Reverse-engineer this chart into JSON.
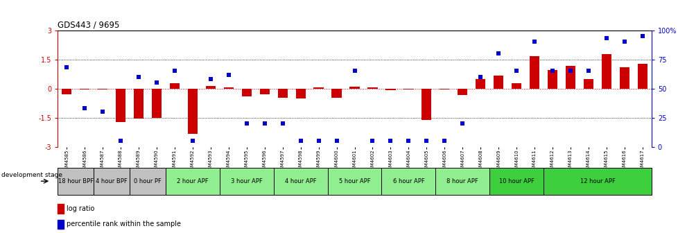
{
  "title": "GDS443 / 9695",
  "samples": [
    "GSM4585",
    "GSM4586",
    "GSM4587",
    "GSM4588",
    "GSM4589",
    "GSM4590",
    "GSM4591",
    "GSM4592",
    "GSM4593",
    "GSM4594",
    "GSM4595",
    "GSM4596",
    "GSM4597",
    "GSM4598",
    "GSM4599",
    "GSM4600",
    "GSM4601",
    "GSM4602",
    "GSM4603",
    "GSM4604",
    "GSM4605",
    "GSM4606",
    "GSM4607",
    "GSM4608",
    "GSM4609",
    "GSM4610",
    "GSM4611",
    "GSM4612",
    "GSM4613",
    "GSM4614",
    "GSM4615",
    "GSM4616",
    "GSM4617"
  ],
  "log_ratio": [
    -0.28,
    -0.05,
    -0.05,
    -1.72,
    -1.55,
    -1.5,
    0.28,
    -2.35,
    0.12,
    0.05,
    -0.42,
    -0.28,
    -0.48,
    -0.52,
    0.05,
    -0.48,
    0.08,
    0.05,
    -0.08,
    -0.05,
    -1.62,
    -0.05,
    -0.32,
    0.48,
    0.68,
    0.28,
    1.68,
    0.95,
    1.18,
    0.48,
    1.78,
    1.08,
    1.28
  ],
  "percentile": [
    68,
    33,
    30,
    5,
    60,
    55,
    65,
    5,
    58,
    62,
    20,
    20,
    20,
    5,
    5,
    5,
    65,
    5,
    5,
    5,
    5,
    5,
    20,
    60,
    80,
    65,
    90,
    65,
    65,
    65,
    93,
    90,
    95
  ],
  "stages": [
    {
      "label": "18 hour BPF",
      "start": 0,
      "end": 2,
      "color": "#c0c0c0"
    },
    {
      "label": "4 hour BPF",
      "start": 2,
      "end": 4,
      "color": "#c0c0c0"
    },
    {
      "label": "0 hour PF",
      "start": 4,
      "end": 6,
      "color": "#c0c0c0"
    },
    {
      "label": "2 hour APF",
      "start": 6,
      "end": 9,
      "color": "#90ee90"
    },
    {
      "label": "3 hour APF",
      "start": 9,
      "end": 12,
      "color": "#90ee90"
    },
    {
      "label": "4 hour APF",
      "start": 12,
      "end": 15,
      "color": "#90ee90"
    },
    {
      "label": "5 hour APF",
      "start": 15,
      "end": 18,
      "color": "#90ee90"
    },
    {
      "label": "6 hour APF",
      "start": 18,
      "end": 21,
      "color": "#90ee90"
    },
    {
      "label": "8 hour APF",
      "start": 21,
      "end": 24,
      "color": "#90ee90"
    },
    {
      "label": "10 hour APF",
      "start": 24,
      "end": 27,
      "color": "#3ecf3e"
    },
    {
      "label": "12 hour APF",
      "start": 27,
      "end": 33,
      "color": "#3ecf3e"
    }
  ],
  "ylim": [
    -3,
    3
  ],
  "yticks_left": [
    -3,
    -1.5,
    0,
    1.5,
    3
  ],
  "yticks_right": [
    0,
    25,
    50,
    75,
    100
  ],
  "bar_color": "#cc0000",
  "dot_color": "#0000cc",
  "hline_color": "#cc0000",
  "dotted_color": "black"
}
